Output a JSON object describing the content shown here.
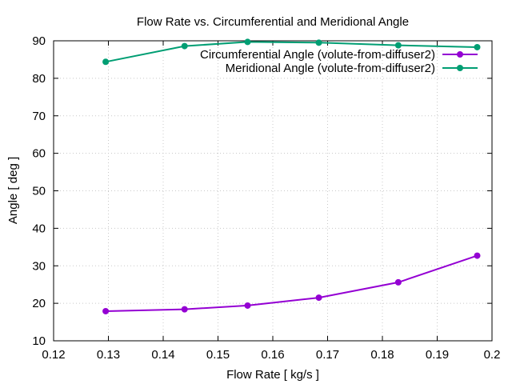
{
  "chart_data": {
    "type": "line",
    "title": "Flow Rate vs. Circumferential and Meridional Angle",
    "xlabel": "Flow Rate [ kg/s ]",
    "ylabel": "Angle [ deg ]",
    "xlim": [
      0.12,
      0.2
    ],
    "ylim": [
      10,
      90
    ],
    "xticks": [
      0.12,
      0.13,
      0.14,
      0.15,
      0.16,
      0.17,
      0.18,
      0.19,
      0.2
    ],
    "xtick_labels": [
      "0.12",
      "0.13",
      "0.14",
      "0.15",
      "0.16",
      "0.17",
      "0.18",
      "0.19",
      "0.2"
    ],
    "yticks": [
      10,
      20,
      30,
      40,
      50,
      60,
      70,
      80,
      90
    ],
    "ytick_labels": [
      "10",
      "20",
      "30",
      "40",
      "50",
      "60",
      "70",
      "80",
      "90"
    ],
    "grid": true,
    "legend_position": "top-right",
    "series": [
      {
        "name": "Circumferential Angle (volute-from-diffuser2)",
        "color": "#9400d3",
        "x": [
          0.1295,
          0.1439,
          0.1554,
          0.1684,
          0.1829,
          0.1973
        ],
        "y": [
          17.9,
          18.4,
          19.4,
          21.5,
          25.6,
          32.7
        ]
      },
      {
        "name": "Meridional Angle (volute-from-diffuser2)",
        "color": "#009e73",
        "x": [
          0.1295,
          0.1439,
          0.1554,
          0.1684,
          0.1829,
          0.1973
        ],
        "y": [
          84.4,
          88.6,
          89.7,
          89.5,
          88.8,
          88.3
        ]
      }
    ]
  }
}
